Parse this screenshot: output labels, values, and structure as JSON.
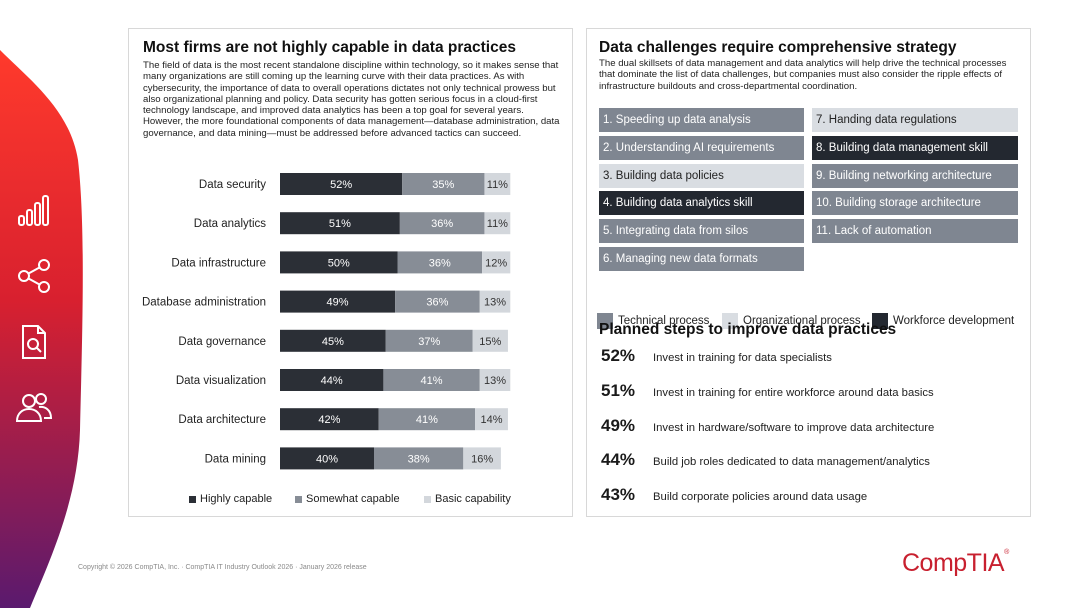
{
  "left_panel": {
    "title": "Most firms are not highly capable in data practices",
    "body": "The field of data is the most recent standalone discipline within technology, so it makes sense that many organizations are still coming up the learning curve with their data practices. As with cybersecurity, the importance of data to overall operations dictates not only technical prowess but also organizational planning and policy. Data security has gotten serious focus in a cloud-first technology landscape, and improved data analytics has been a top goal for several years. However, the more foundational components of data management—database administration, data governance, and data mining—must be addressed before advanced tactics can succeed."
  },
  "chart_data": {
    "type": "bar",
    "orientation": "horizontal",
    "stacked": true,
    "categories": [
      "Data security",
      "Data analytics",
      "Data infrastructure",
      "Database administration",
      "Data governance",
      "Data visualization",
      "Data architecture",
      "Data mining"
    ],
    "series": [
      {
        "name": "Highly capable",
        "values": [
          52,
          51,
          50,
          49,
          45,
          44,
          42,
          40
        ],
        "color": "#2b2f36"
      },
      {
        "name": "Somewhat capable",
        "values": [
          35,
          36,
          36,
          36,
          37,
          41,
          41,
          38
        ],
        "color": "#878d96"
      },
      {
        "name": "Basic capability",
        "values": [
          11,
          11,
          12,
          13,
          15,
          13,
          14,
          16
        ],
        "color": "#d3d7dc"
      }
    ],
    "value_suffix": "%",
    "legend_position": "bottom",
    "xlim": [
      0,
      100
    ]
  },
  "right_panel": {
    "title": "Data challenges require comprehensive strategy",
    "body": "The dual skillsets of data management and data analytics will help drive the technical processes that dominate the list of data challenges, but companies must also consider the ripple effects of infrastructure buildouts and cross-departmental coordination.",
    "challenges_col1": [
      {
        "label": "1. Speeding up data analysis",
        "type": "tech"
      },
      {
        "label": "2. Understanding AI requirements",
        "type": "tech"
      },
      {
        "label": "3. Building data policies",
        "type": "org"
      },
      {
        "label": "4. Building data analytics skill",
        "type": "work"
      },
      {
        "label": "5. Integrating data from silos",
        "type": "tech"
      },
      {
        "label": "6. Managing new data formats",
        "type": "tech"
      }
    ],
    "challenges_col2": [
      {
        "label": "7. Handing data regulations",
        "type": "org"
      },
      {
        "label": "8. Building data management skill",
        "type": "work"
      },
      {
        "label": "9. Building networking architecture",
        "type": "tech"
      },
      {
        "label": "10. Building storage architecture",
        "type": "tech"
      },
      {
        "label": "11. Lack of automation",
        "type": "tech"
      }
    ],
    "key": {
      "technical": "Technical process",
      "organizational": "Organizational process",
      "workforce": "Workforce development"
    },
    "steps_title": "Planned steps to improve data practices",
    "steps": [
      {
        "pct": "52%",
        "text": "Invest in training for data specialists"
      },
      {
        "pct": "51%",
        "text": "Invest in training for entire workforce around data basics"
      },
      {
        "pct": "49%",
        "text": "Invest in hardware/software to improve data architecture"
      },
      {
        "pct": "44%",
        "text": "Build job roles dedicated to data management/analytics"
      },
      {
        "pct": "43%",
        "text": "Build corporate policies around data usage"
      }
    ]
  },
  "colors": {
    "tech": "#7f8691",
    "org": "#d9dde2",
    "work": "#232830",
    "brand": "#c8202f"
  },
  "footer": "Copyright © 2026 CompTIA, Inc. · CompTIA IT Industry Outlook 2026 · January 2026 release",
  "logo": "CompTIA",
  "sidebar_icons": [
    "bar-chart-icon",
    "share-icon",
    "document-search-icon",
    "users-icon"
  ]
}
